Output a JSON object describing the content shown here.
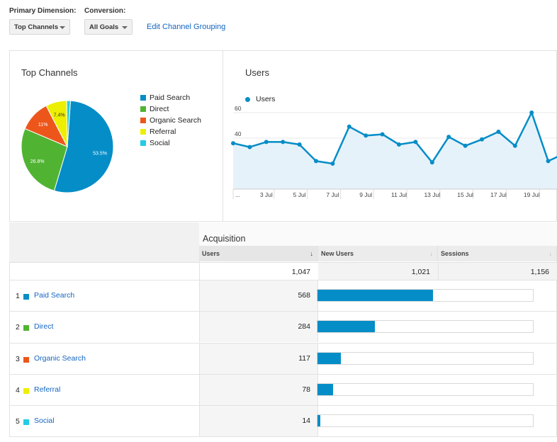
{
  "controls": {
    "primary_dimension_label": "Primary Dimension:",
    "primary_dimension_value": "Top Channels",
    "conversion_label": "Conversion:",
    "conversion_value": "All Goals",
    "edit_link": "Edit Channel Grouping"
  },
  "pie_panel": {
    "title": "Top Channels",
    "legend": [
      {
        "label": "Paid Search",
        "color": "#058dc7"
      },
      {
        "label": "Direct",
        "color": "#50b432"
      },
      {
        "label": "Organic Search",
        "color": "#ed561b"
      },
      {
        "label": "Referral",
        "color": "#edef00"
      },
      {
        "label": "Social",
        "color": "#24cbe5"
      }
    ]
  },
  "line_panel": {
    "title": "Users",
    "legend_label": "Users"
  },
  "chart_data": [
    {
      "type": "pie",
      "title": "Top Channels",
      "labels": [
        "Paid Search",
        "Direct",
        "Organic Search",
        "Referral",
        "Social"
      ],
      "values": [
        53.5,
        26.8,
        11,
        7.4,
        1.3
      ],
      "value_labels": [
        "53.5%",
        "26.8%",
        "11%",
        "7.4%",
        ""
      ],
      "colors": [
        "#058dc7",
        "#50b432",
        "#ed561b",
        "#edef00",
        "#24cbe5"
      ]
    },
    {
      "type": "area",
      "title": "Users",
      "series": [
        {
          "name": "Users",
          "color": "#058dc7"
        }
      ],
      "x": [
        "1 Jul",
        "2 Jul",
        "3 Jul",
        "4 Jul",
        "5 Jul",
        "6 Jul",
        "7 Jul",
        "8 Jul",
        "9 Jul",
        "10 Jul",
        "11 Jul",
        "12 Jul",
        "13 Jul",
        "14 Jul",
        "15 Jul",
        "16 Jul",
        "17 Jul",
        "18 Jul",
        "19 Jul",
        "20 Jul",
        "21 Jul"
      ],
      "values": [
        36,
        33,
        37,
        37,
        35,
        22,
        20,
        49,
        42,
        43,
        35,
        37,
        21,
        41,
        34,
        39,
        45,
        34,
        60,
        22,
        28
      ],
      "x_tick_labels": [
        "...",
        "3 Jul",
        "5 Jul",
        "7 Jul",
        "9 Jul",
        "11 Jul",
        "13 Jul",
        "15 Jul",
        "17 Jul",
        "19 Jul"
      ],
      "y_ticks": [
        20,
        40,
        60
      ],
      "ylim": [
        0,
        70
      ],
      "grid": true
    }
  ],
  "table": {
    "group_header": "Acquisition",
    "columns": [
      {
        "label": "Users",
        "sort": "↓"
      },
      {
        "label": "New Users",
        "sort": "↓"
      },
      {
        "label": "Sessions",
        "sort": "↓"
      }
    ],
    "totals": {
      "users": "1,047",
      "new_users": "1,021",
      "sessions": "1,156"
    },
    "rows": [
      {
        "rank": "1",
        "name": "Paid Search",
        "color": "#058dc7",
        "users": "568",
        "share": 0.535
      },
      {
        "rank": "2",
        "name": "Direct",
        "color": "#50b432",
        "users": "284",
        "share": 0.268
      },
      {
        "rank": "3",
        "name": "Organic Search",
        "color": "#ed561b",
        "users": "117",
        "share": 0.11
      },
      {
        "rank": "4",
        "name": "Referral",
        "color": "#edef00",
        "users": "78",
        "share": 0.074
      },
      {
        "rank": "5",
        "name": "Social",
        "color": "#24cbe5",
        "users": "14",
        "share": 0.013
      }
    ]
  }
}
